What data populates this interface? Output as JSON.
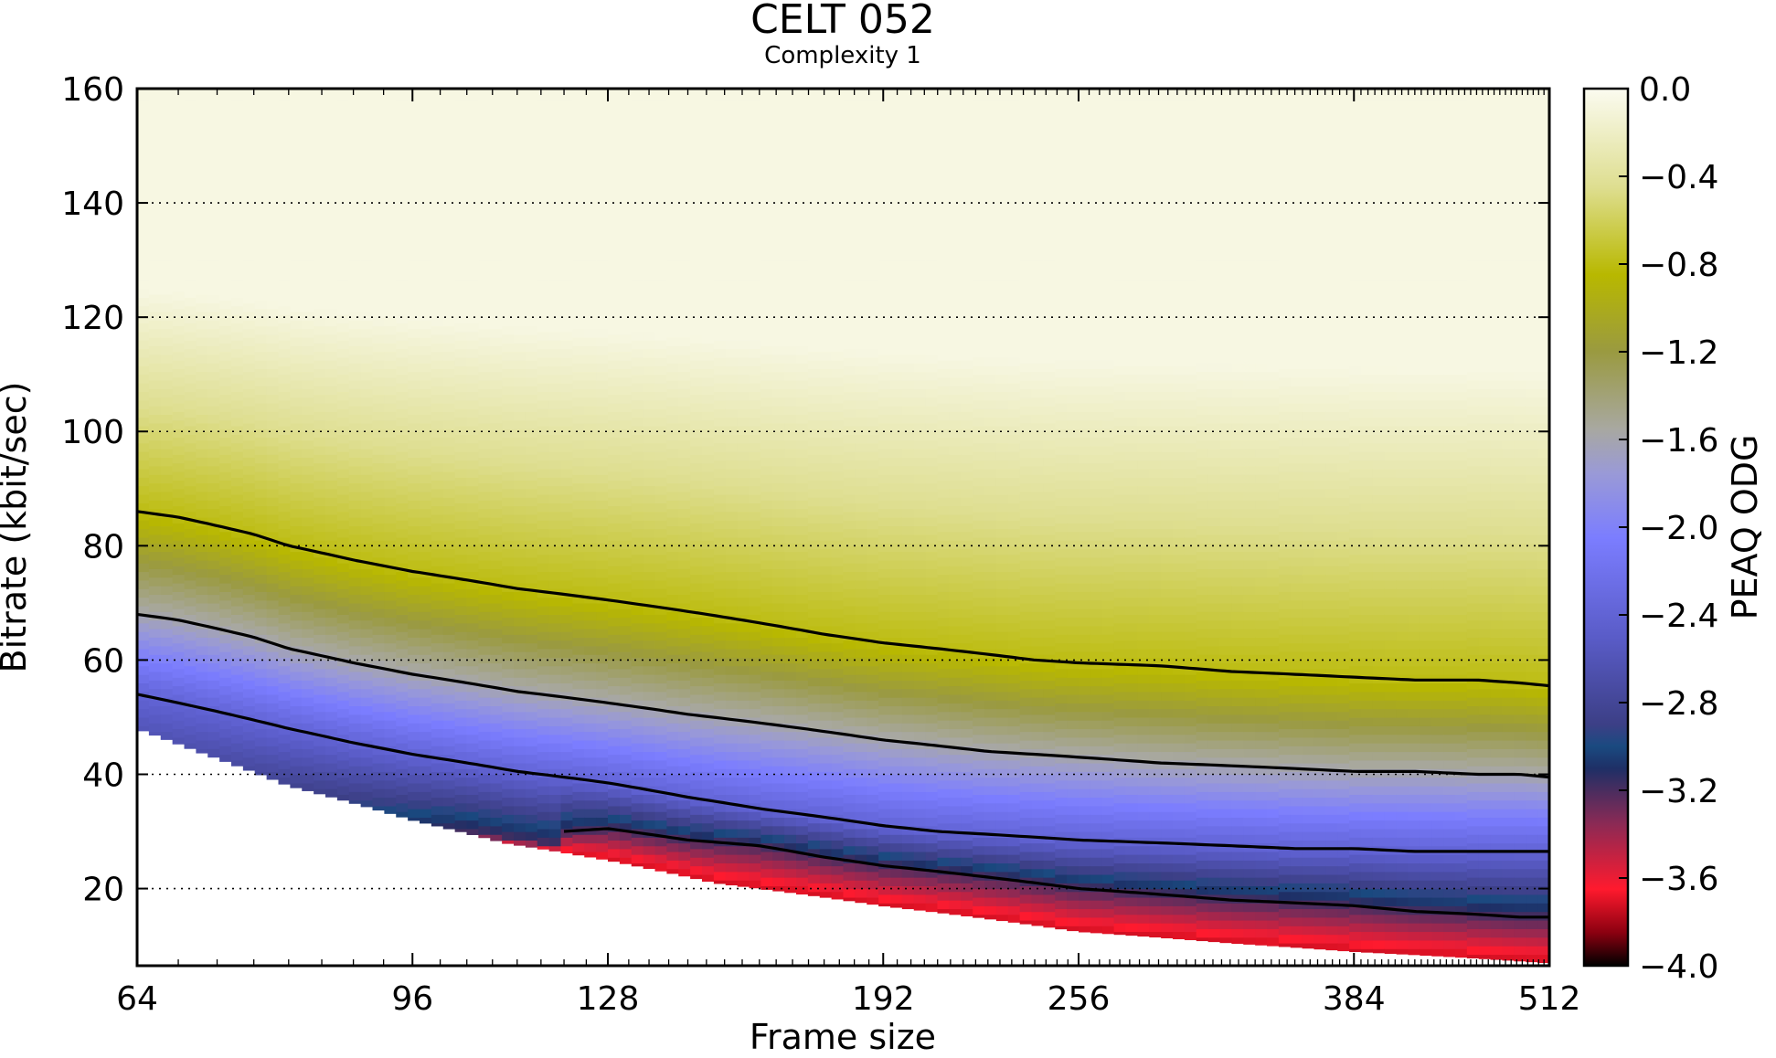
{
  "chart_data": {
    "type": "heatmap",
    "title": "CELT 052",
    "subtitle": "Complexity 1",
    "xlabel": "Frame size",
    "ylabel": "Bitrate (kbit/sec)",
    "x_scale": "log2",
    "xlim": [
      64,
      512
    ],
    "ylim": [
      6.5,
      160
    ],
    "x_ticks": [
      "64",
      "96",
      "128",
      "192",
      "256",
      "384",
      "512"
    ],
    "y_ticks": [
      "20",
      "40",
      "60",
      "80",
      "100",
      "120",
      "140",
      "160"
    ],
    "grid": "horizontal dotted",
    "colorbar": {
      "label": "PEAQ ODG",
      "range": [
        -4.0,
        0.0
      ],
      "ticks": [
        "0.0",
        "−0.4",
        "−0.8",
        "−1.2",
        "−1.6",
        "−2.0",
        "−2.4",
        "−2.8",
        "−3.2",
        "−3.6",
        "−4.0"
      ],
      "stops": [
        {
          "v": -4.0,
          "color": "#000000"
        },
        {
          "v": -3.85,
          "color": "#8a0010"
        },
        {
          "v": -3.65,
          "color": "#ff1a2e"
        },
        {
          "v": -3.35,
          "color": "#8a2a55"
        },
        {
          "v": -3.1,
          "color": "#1e2f66"
        },
        {
          "v": -3.0,
          "color": "#1a4a80"
        },
        {
          "v": -2.9,
          "color": "#3c3f86"
        },
        {
          "v": -2.5,
          "color": "#5a5cc8"
        },
        {
          "v": -2.05,
          "color": "#7b7dff"
        },
        {
          "v": -1.75,
          "color": "#9a9ad6"
        },
        {
          "v": -1.55,
          "color": "#a8a8a0"
        },
        {
          "v": -1.2,
          "color": "#9a9a40"
        },
        {
          "v": -0.85,
          "color": "#b8b800"
        },
        {
          "v": -0.45,
          "color": "#dede90"
        },
        {
          "v": 0.0,
          "color": "#fbfbf0"
        }
      ]
    },
    "data_floor": {
      "x": [
        64,
        70,
        80,
        96,
        110,
        128,
        150,
        192,
        256,
        320,
        384,
        450,
        512
      ],
      "min_bitrate": [
        48,
        44,
        38,
        32,
        28,
        25,
        21,
        17,
        12.5,
        10.5,
        9,
        8,
        7
      ]
    },
    "series": [
      {
        "odg": -0.8,
        "x": [
          64,
          68,
          72,
          76,
          80,
          88,
          96,
          104,
          112,
          120,
          128,
          144,
          160,
          176,
          192,
          208,
          224,
          240,
          256,
          288,
          320,
          352,
          384,
          420,
          460,
          490,
          512
        ],
        "y": [
          86,
          85,
          83.5,
          82,
          80,
          77.5,
          75.5,
          74,
          72.5,
          71.5,
          70.5,
          68.5,
          66.5,
          64.5,
          63,
          62,
          61,
          60,
          59.5,
          59,
          58,
          57.5,
          57,
          56.5,
          56.5,
          56,
          55.5
        ]
      },
      {
        "odg": -1.6,
        "x": [
          64,
          68,
          72,
          76,
          80,
          88,
          96,
          104,
          112,
          120,
          128,
          144,
          160,
          176,
          192,
          208,
          224,
          240,
          256,
          288,
          320,
          352,
          384,
          420,
          460,
          490,
          512
        ],
        "y": [
          68,
          67,
          65.5,
          64,
          62,
          59.5,
          57.5,
          56,
          54.5,
          53.5,
          52.5,
          50.5,
          49,
          47.5,
          46,
          45,
          44,
          43.5,
          43,
          42,
          41.5,
          41,
          40.5,
          40.5,
          40,
          40,
          39.5
        ]
      },
      {
        "odg": -2.4,
        "x": [
          64,
          68,
          72,
          76,
          80,
          88,
          96,
          104,
          112,
          120,
          128,
          144,
          160,
          176,
          192,
          208,
          224,
          240,
          256,
          288,
          320,
          352,
          384,
          420,
          460,
          490,
          512
        ],
        "y": [
          54,
          52.5,
          51,
          49.5,
          48,
          45.5,
          43.5,
          42,
          40.5,
          39.5,
          38.5,
          36,
          34,
          32.5,
          31,
          30,
          29.5,
          29,
          28.5,
          28,
          27.5,
          27,
          27,
          26.5,
          26.5,
          26.5,
          26.5
        ]
      },
      {
        "odg": -3.2,
        "x": [
          120,
          128,
          136,
          144,
          152,
          160,
          176,
          192,
          208,
          224,
          240,
          256,
          288,
          320,
          352,
          384,
          420,
          460,
          490,
          512
        ],
        "y": [
          30,
          30.5,
          29.5,
          28.5,
          28,
          27.5,
          25.5,
          24,
          23,
          22,
          21,
          20,
          19,
          18,
          17.5,
          17,
          16,
          15.5,
          15,
          15
        ]
      }
    ]
  }
}
